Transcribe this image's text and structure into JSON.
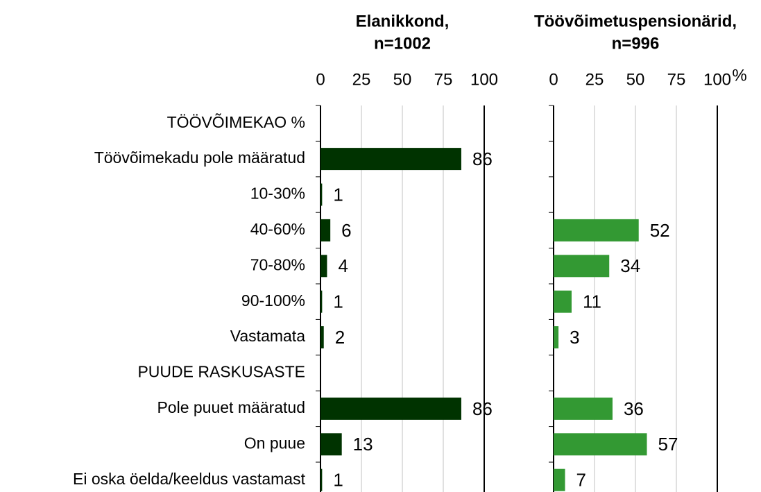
{
  "chart_data": [
    {
      "type": "bar",
      "orientation": "horizontal",
      "title": "Elanikkond,",
      "subtitle": "n=1002",
      "categories": [
        "TÖÖVÕIMEKAO %",
        "Töövõimekadu pole määratud",
        "10-30%",
        "40-60%",
        "70-80%",
        "90-100%",
        "Vastamata",
        "PUUDE RASKUSASTE",
        "Pole puuet määratud",
        "On puue",
        "Ei oska öelda/keeldus vastamast"
      ],
      "values": [
        null,
        86,
        1,
        6,
        4,
        1,
        2,
        null,
        86,
        13,
        1
      ],
      "color": "#003300",
      "xlim": [
        0,
        100
      ],
      "xticks": [
        0,
        25,
        50,
        75,
        100
      ],
      "grid": true
    },
    {
      "type": "bar",
      "orientation": "horizontal",
      "title": "Töövõimetuspensionärid,",
      "subtitle": "n=996",
      "xlabel": "%",
      "values": [
        null,
        null,
        null,
        52,
        34,
        11,
        3,
        null,
        36,
        57,
        7
      ],
      "color": "#339933",
      "xlim": [
        0,
        100
      ],
      "xticks": [
        0,
        25,
        50,
        75,
        100
      ],
      "grid": true
    }
  ]
}
